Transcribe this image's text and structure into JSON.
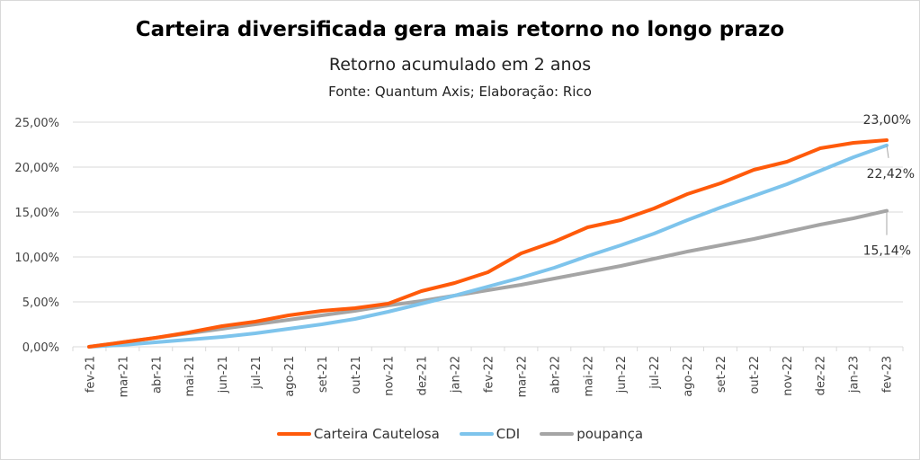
{
  "chart_data": {
    "type": "line",
    "title": "Carteira diversificada gera mais retorno no longo prazo",
    "subtitle": "Retorno acumulado em 2 anos",
    "source": "Fonte: Quantum Axis; Elaboração: Rico",
    "xlabel": "",
    "ylabel": "",
    "ylim": [
      0,
      25
    ],
    "yticks": [
      "0,00%",
      "5,00%",
      "10,00%",
      "15,00%",
      "20,00%",
      "25,00%"
    ],
    "ytick_values": [
      0,
      5,
      10,
      15,
      20,
      25
    ],
    "grid": true,
    "legend_position": "bottom",
    "categories": [
      "fev-21",
      "mar-21",
      "abr-21",
      "mai-21",
      "jun-21",
      "jul-21",
      "ago-21",
      "set-21",
      "out-21",
      "nov-21",
      "dez-21",
      "jan-22",
      "fev-22",
      "mar-22",
      "abr-22",
      "mai-22",
      "jun-22",
      "jul-22",
      "ago-22",
      "set-22",
      "out-22",
      "nov-22",
      "dez-22",
      "jan-23",
      "fev-23"
    ],
    "series": [
      {
        "name": "Carteira Cautelosa",
        "color": "#ff5a0a",
        "values": [
          0,
          0.5,
          1.0,
          1.6,
          2.3,
          2.8,
          3.5,
          4.0,
          4.3,
          4.8,
          6.2,
          7.1,
          8.3,
          10.4,
          11.7,
          13.3,
          14.1,
          15.4,
          17.0,
          18.2,
          19.7,
          20.6,
          22.1,
          22.7,
          23.0
        ],
        "end_label": "23,00%"
      },
      {
        "name": "CDI",
        "color": "#7ec4ec",
        "values": [
          0,
          0.2,
          0.5,
          0.8,
          1.1,
          1.5,
          2.0,
          2.5,
          3.1,
          3.9,
          4.8,
          5.7,
          6.7,
          7.7,
          8.8,
          10.1,
          11.3,
          12.6,
          14.1,
          15.5,
          16.8,
          18.1,
          19.6,
          21.1,
          22.42
        ],
        "end_label": "22,42%"
      },
      {
        "name": "poupança",
        "color": "#a5a5a5",
        "values": [
          0,
          0.5,
          1.0,
          1.5,
          2.0,
          2.5,
          3.0,
          3.5,
          4.0,
          4.6,
          5.1,
          5.7,
          6.3,
          6.9,
          7.6,
          8.3,
          9.0,
          9.8,
          10.6,
          11.3,
          12.0,
          12.8,
          13.6,
          14.3,
          15.14
        ],
        "end_label": "15,14%"
      }
    ]
  }
}
